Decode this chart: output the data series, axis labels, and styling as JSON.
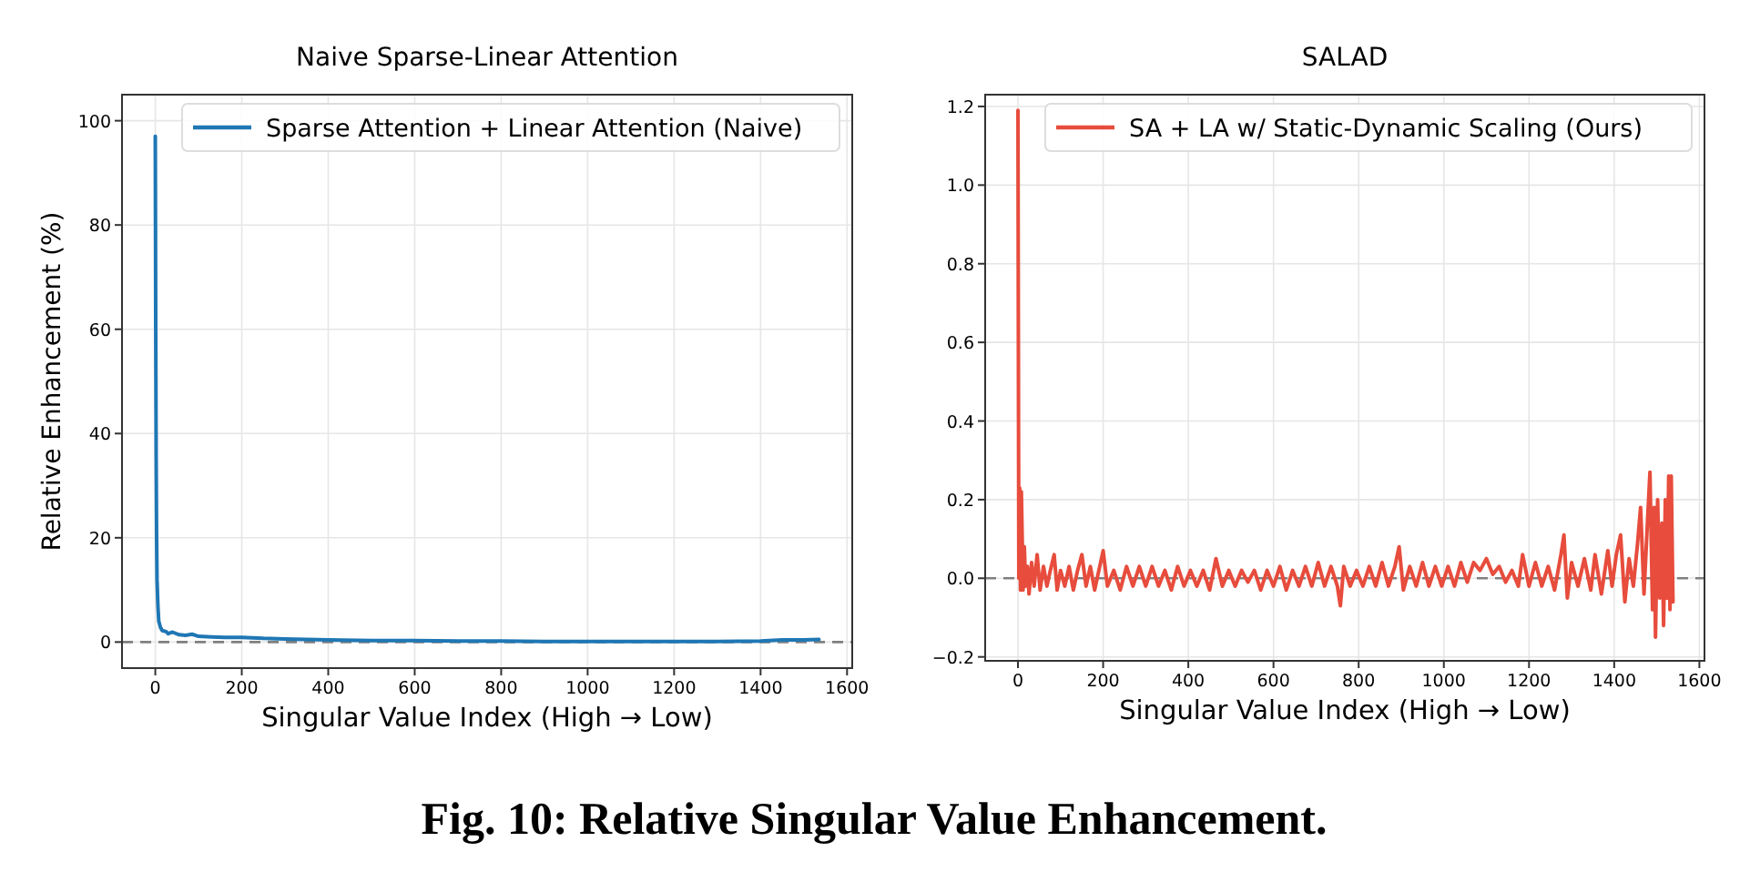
{
  "chart_data": [
    {
      "type": "line",
      "title": "Naive Sparse-Linear Attention",
      "xlabel": "Singular Value Index (High → Low)",
      "ylabel": "Relative Enhancement (%)",
      "xlim": [
        -77,
        1612
      ],
      "ylim": [
        -5,
        105
      ],
      "xticks": [
        0,
        200,
        400,
        600,
        800,
        1000,
        1200,
        1400,
        1600
      ],
      "yticks": [
        0,
        20,
        40,
        60,
        80,
        100
      ],
      "grid": true,
      "legend": "top",
      "ref_lines": [
        {
          "axis": "y",
          "value": 0,
          "color": "#808080",
          "line_style": "dashed"
        }
      ],
      "annotations": [
        "Fig. 10: Relative Singular Value Enhancement."
      ],
      "series": [
        {
          "name": "Sparse Attention + Linear Attention (Naive)",
          "color": "#1f77b4",
          "x": [
            0,
            1,
            2,
            3,
            4,
            6,
            8,
            12,
            16,
            25,
            30,
            40,
            55,
            70,
            85,
            100,
            130,
            160,
            200,
            250,
            300,
            350,
            400,
            500,
            600,
            700,
            800,
            900,
            1000,
            1100,
            1200,
            1300,
            1400,
            1450,
            1500,
            1535
          ],
          "values": [
            97,
            60,
            35,
            20,
            12,
            7,
            4,
            2.8,
            2.2,
            2.0,
            1.6,
            1.9,
            1.4,
            1.3,
            1.5,
            1.1,
            1.0,
            0.9,
            0.9,
            0.7,
            0.6,
            0.5,
            0.4,
            0.3,
            0.3,
            0.2,
            0.2,
            0.1,
            0.1,
            0.1,
            0.1,
            0.1,
            0.2,
            0.4,
            0.4,
            0.5
          ]
        }
      ]
    },
    {
      "type": "line",
      "title": "SALAD",
      "xlabel": "Singular Value Index (High → Low)",
      "xlim": [
        -77,
        1612
      ],
      "ylim": [
        -0.21,
        1.23
      ],
      "xticks": [
        0,
        200,
        400,
        600,
        800,
        1000,
        1200,
        1400,
        1600
      ],
      "yticks": [
        {
          "value": -0.2,
          "label": "−0.2"
        },
        {
          "value": 0,
          "label": "0.0"
        },
        {
          "value": 0.2,
          "label": "0.2"
        },
        {
          "value": 0.4,
          "label": "0.4"
        },
        {
          "value": 0.6,
          "label": "0.6"
        },
        {
          "value": 0.8,
          "label": "0.8"
        },
        {
          "value": 1.0,
          "label": "1.0"
        },
        {
          "value": 1.2,
          "label": "1.2"
        }
      ],
      "grid": true,
      "legend": "top",
      "ref_lines": [
        {
          "axis": "y",
          "value": 0,
          "color": "#808080",
          "line_style": "dashed"
        }
      ],
      "series": [
        {
          "name": "SA + LA w/ Static-Dynamic Scaling (Ours)",
          "color": "#e74c3c",
          "x": [
            0,
            2,
            4,
            6,
            8,
            10,
            12,
            15,
            18,
            22,
            26,
            32,
            38,
            45,
            52,
            60,
            68,
            76,
            85,
            92,
            100,
            110,
            120,
            130,
            140,
            150,
            160,
            170,
            180,
            190,
            200,
            210,
            225,
            240,
            255,
            270,
            285,
            300,
            315,
            330,
            345,
            360,
            375,
            390,
            405,
            420,
            435,
            450,
            465,
            480,
            495,
            510,
            525,
            540,
            555,
            570,
            585,
            600,
            615,
            630,
            645,
            660,
            675,
            690,
            705,
            720,
            735,
            750,
            757,
            765,
            780,
            795,
            810,
            825,
            840,
            855,
            870,
            885,
            895,
            905,
            920,
            935,
            950,
            965,
            980,
            995,
            1010,
            1025,
            1040,
            1055,
            1070,
            1085,
            1100,
            1115,
            1130,
            1145,
            1160,
            1175,
            1185,
            1200,
            1215,
            1230,
            1245,
            1260,
            1275,
            1282,
            1290,
            1300,
            1315,
            1330,
            1345,
            1355,
            1370,
            1385,
            1395,
            1405,
            1415,
            1425,
            1435,
            1445,
            1455,
            1462,
            1470,
            1478,
            1484,
            1490,
            1494,
            1497,
            1502,
            1507,
            1512,
            1516,
            1520,
            1524,
            1528,
            1531,
            1534,
            1536,
            1538
          ],
          "values": [
            1.19,
            0.0,
            0.23,
            -0.03,
            0.22,
            0.1,
            -0.03,
            0.08,
            -0.02,
            0.03,
            -0.04,
            0.04,
            -0.02,
            0.06,
            -0.03,
            0.03,
            -0.02,
            0.02,
            0.06,
            -0.03,
            0.02,
            -0.02,
            0.03,
            -0.03,
            0.02,
            0.06,
            -0.02,
            0.03,
            -0.03,
            0.02,
            0.07,
            -0.02,
            0.02,
            -0.03,
            0.03,
            -0.02,
            0.03,
            -0.02,
            0.03,
            -0.02,
            0.02,
            -0.03,
            0.03,
            -0.02,
            0.02,
            -0.02,
            0.02,
            -0.03,
            0.05,
            -0.02,
            0.02,
            -0.02,
            0.02,
            -0.01,
            0.02,
            -0.03,
            0.02,
            -0.02,
            0.03,
            -0.03,
            0.02,
            -0.02,
            0.03,
            -0.02,
            0.04,
            -0.02,
            0.03,
            -0.02,
            -0.07,
            0.03,
            -0.02,
            0.02,
            -0.02,
            0.03,
            -0.02,
            0.04,
            -0.02,
            0.03,
            0.08,
            -0.03,
            0.03,
            -0.02,
            0.04,
            -0.02,
            0.03,
            -0.02,
            0.03,
            -0.02,
            0.04,
            -0.01,
            0.04,
            0.02,
            0.05,
            0.01,
            0.03,
            -0.01,
            0.02,
            -0.02,
            0.06,
            -0.02,
            0.04,
            -0.02,
            0.03,
            -0.03,
            0.06,
            0.11,
            -0.05,
            0.04,
            -0.02,
            0.05,
            -0.03,
            0.06,
            -0.04,
            0.07,
            -0.02,
            0.06,
            0.11,
            -0.06,
            0.05,
            -0.02,
            0.09,
            0.18,
            -0.04,
            0.14,
            0.27,
            -0.08,
            0.18,
            -0.15,
            0.2,
            -0.05,
            0.14,
            -0.12,
            0.2,
            -0.05,
            0.26,
            -0.08,
            0.26,
            0.1,
            -0.06
          ]
        }
      ]
    }
  ]
}
